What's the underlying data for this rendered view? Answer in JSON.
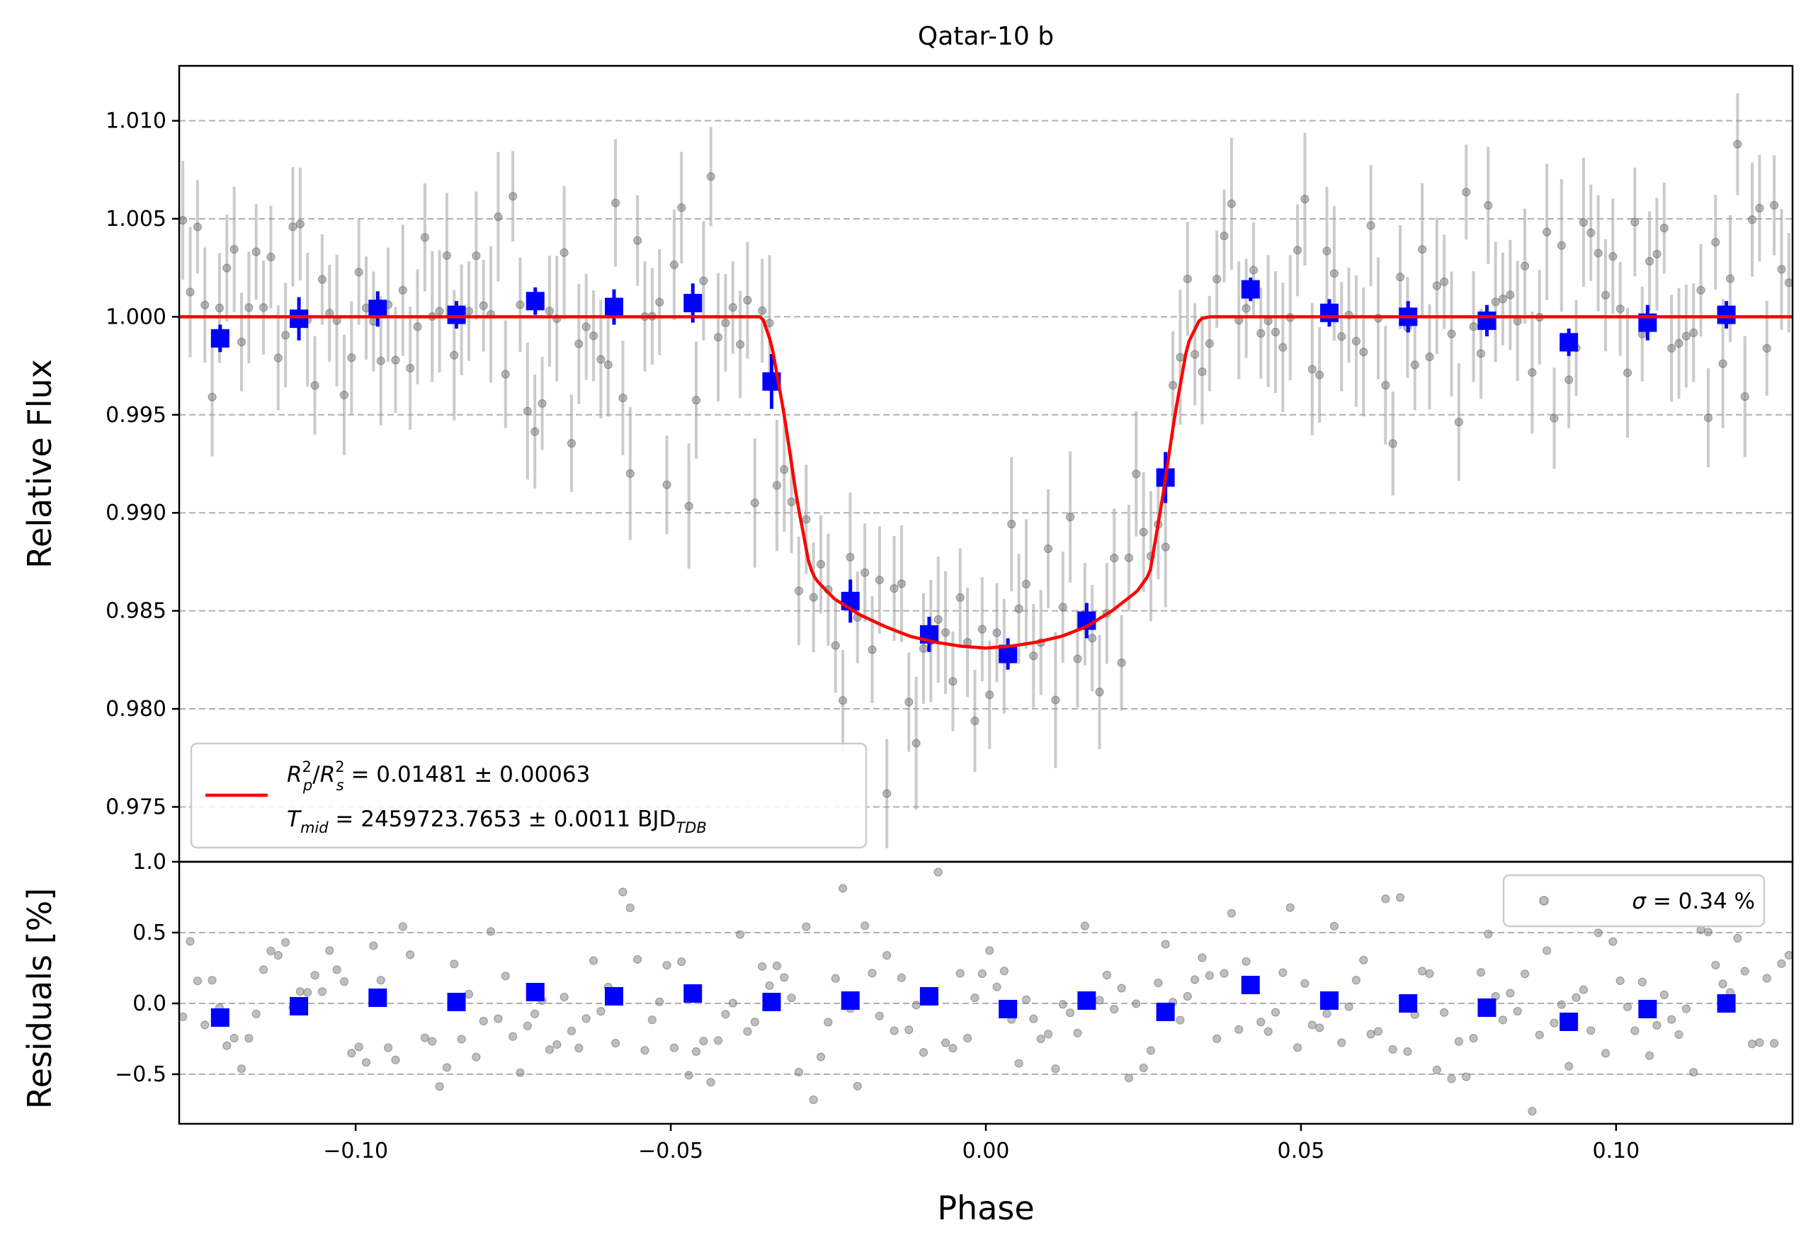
{
  "chart_data": [
    {
      "type": "scatter",
      "title": "Qatar-10 b",
      "xlabel": "",
      "ylabel": "Relative Flux",
      "xlim": [
        -0.128,
        0.128
      ],
      "ylim": [
        0.9722,
        1.0128
      ],
      "yticks": [
        0.975,
        0.98,
        0.985,
        0.99,
        0.995,
        1.0,
        1.005,
        1.01
      ],
      "ytick_labels": [
        "0.975",
        "0.980",
        "0.985",
        "0.990",
        "0.995",
        "1.000",
        "1.005",
        "1.010"
      ],
      "grid": "y",
      "series": [
        {
          "kind": "binned",
          "color": "#0000ff",
          "x": [
            -0.1215,
            -0.109,
            -0.0965,
            -0.084,
            -0.0715,
            -0.059,
            -0.0465,
            -0.034,
            -0.0215,
            -0.009,
            0.0035,
            0.016,
            0.0285,
            0.042,
            0.0545,
            0.067,
            0.0795,
            0.0925,
            0.105,
            0.1175
          ],
          "y": [
            0.9989,
            0.9999,
            1.0004,
            1.0001,
            1.0008,
            1.0005,
            1.0007,
            0.9967,
            0.9855,
            0.9838,
            0.9828,
            0.9845,
            0.9918,
            1.0014,
            1.0002,
            1.0,
            0.9998,
            0.9987,
            0.9997,
            1.0001
          ],
          "yerr": [
            0.0007,
            0.0011,
            0.0009,
            0.0007,
            0.0007,
            0.0009,
            0.001,
            0.0014,
            0.0011,
            0.0009,
            0.0008,
            0.0009,
            0.0013,
            0.0006,
            0.0007,
            0.0008,
            0.0008,
            0.0007,
            0.0009,
            0.0007
          ]
        },
        {
          "kind": "model",
          "color": "#ff0000",
          "name": "R_p^2/R_s^2 = 0.01481 ± 0.00063 ; T_mid = 2459723.7653 ± 0.0011 BJD_TDB",
          "x": [
            -0.128,
            -0.0355,
            -0.034,
            -0.032,
            -0.03,
            -0.028,
            -0.027,
            -0.024,
            -0.02,
            -0.016,
            -0.012,
            -0.008,
            -0.004,
            0.0,
            0.004,
            0.008,
            0.012,
            0.016,
            0.02,
            0.024,
            0.026,
            0.028,
            0.03,
            0.032,
            0.034,
            0.0355,
            0.128
          ],
          "y": [
            1.0,
            1.0,
            0.9986,
            0.995,
            0.9907,
            0.9873,
            0.9866,
            0.9856,
            0.9848,
            0.9842,
            0.9837,
            0.9834,
            0.9832,
            0.9831,
            0.9832,
            0.9834,
            0.9837,
            0.9842,
            0.985,
            0.986,
            0.9869,
            0.9907,
            0.995,
            0.9986,
            0.9999,
            1.0,
            1.0
          ]
        }
      ],
      "legend": {
        "placement": "lower-left",
        "line1_lhs": "/",
        "line1_rhs": " = 0.01481 ± 0.00063",
        "line1_r_symbol": "R",
        "line1_p_sub": "p",
        "line1_s_sub": "s",
        "line1_sup": "2",
        "line2_t_symbol": "T",
        "line2_t_sub": "mid",
        "line2_rhs": " = 2459723.7653 ± 0.0011 BJD",
        "line2_bjd_sub": "TDB"
      },
      "raw_points": {
        "color": "#808080",
        "note": "individual measurements with error bars ~0.0025",
        "n": 220,
        "seed": 7
      }
    },
    {
      "type": "scatter",
      "title": "",
      "xlabel": "Phase",
      "ylabel": "Residuals [%]",
      "xlim": [
        -0.128,
        0.128
      ],
      "ylim": [
        -0.85,
        1.0
      ],
      "xticks": [
        -0.1,
        -0.05,
        0.0,
        0.05,
        0.1
      ],
      "xtick_labels": [
        "−0.10",
        "−0.05",
        "0.00",
        "0.05",
        "0.10"
      ],
      "yticks": [
        -0.5,
        0.0,
        0.5,
        1.0
      ],
      "ytick_labels": [
        "−0.5",
        "0.0",
        "0.5",
        "1.0"
      ],
      "grid": "y",
      "series": [
        {
          "kind": "binned",
          "color": "#0000ff",
          "x": [
            -0.1215,
            -0.109,
            -0.0965,
            -0.084,
            -0.0715,
            -0.059,
            -0.0465,
            -0.034,
            -0.0215,
            -0.009,
            0.0035,
            0.016,
            0.0285,
            0.042,
            0.0545,
            0.067,
            0.0795,
            0.0925,
            0.105,
            0.1175
          ],
          "y": [
            -0.1,
            -0.02,
            0.04,
            0.01,
            0.08,
            0.05,
            0.07,
            0.01,
            0.02,
            0.05,
            -0.04,
            0.02,
            -0.06,
            0.13,
            0.02,
            0.0,
            -0.03,
            -0.13,
            -0.04,
            0.0
          ]
        }
      ],
      "legend": {
        "placement": "upper-right",
        "sigma_symbol": "σ",
        "sigma_text": " = 0.34 %"
      },
      "raw_points": {
        "color": "#808080",
        "n": 220,
        "seed": 11
      }
    }
  ]
}
